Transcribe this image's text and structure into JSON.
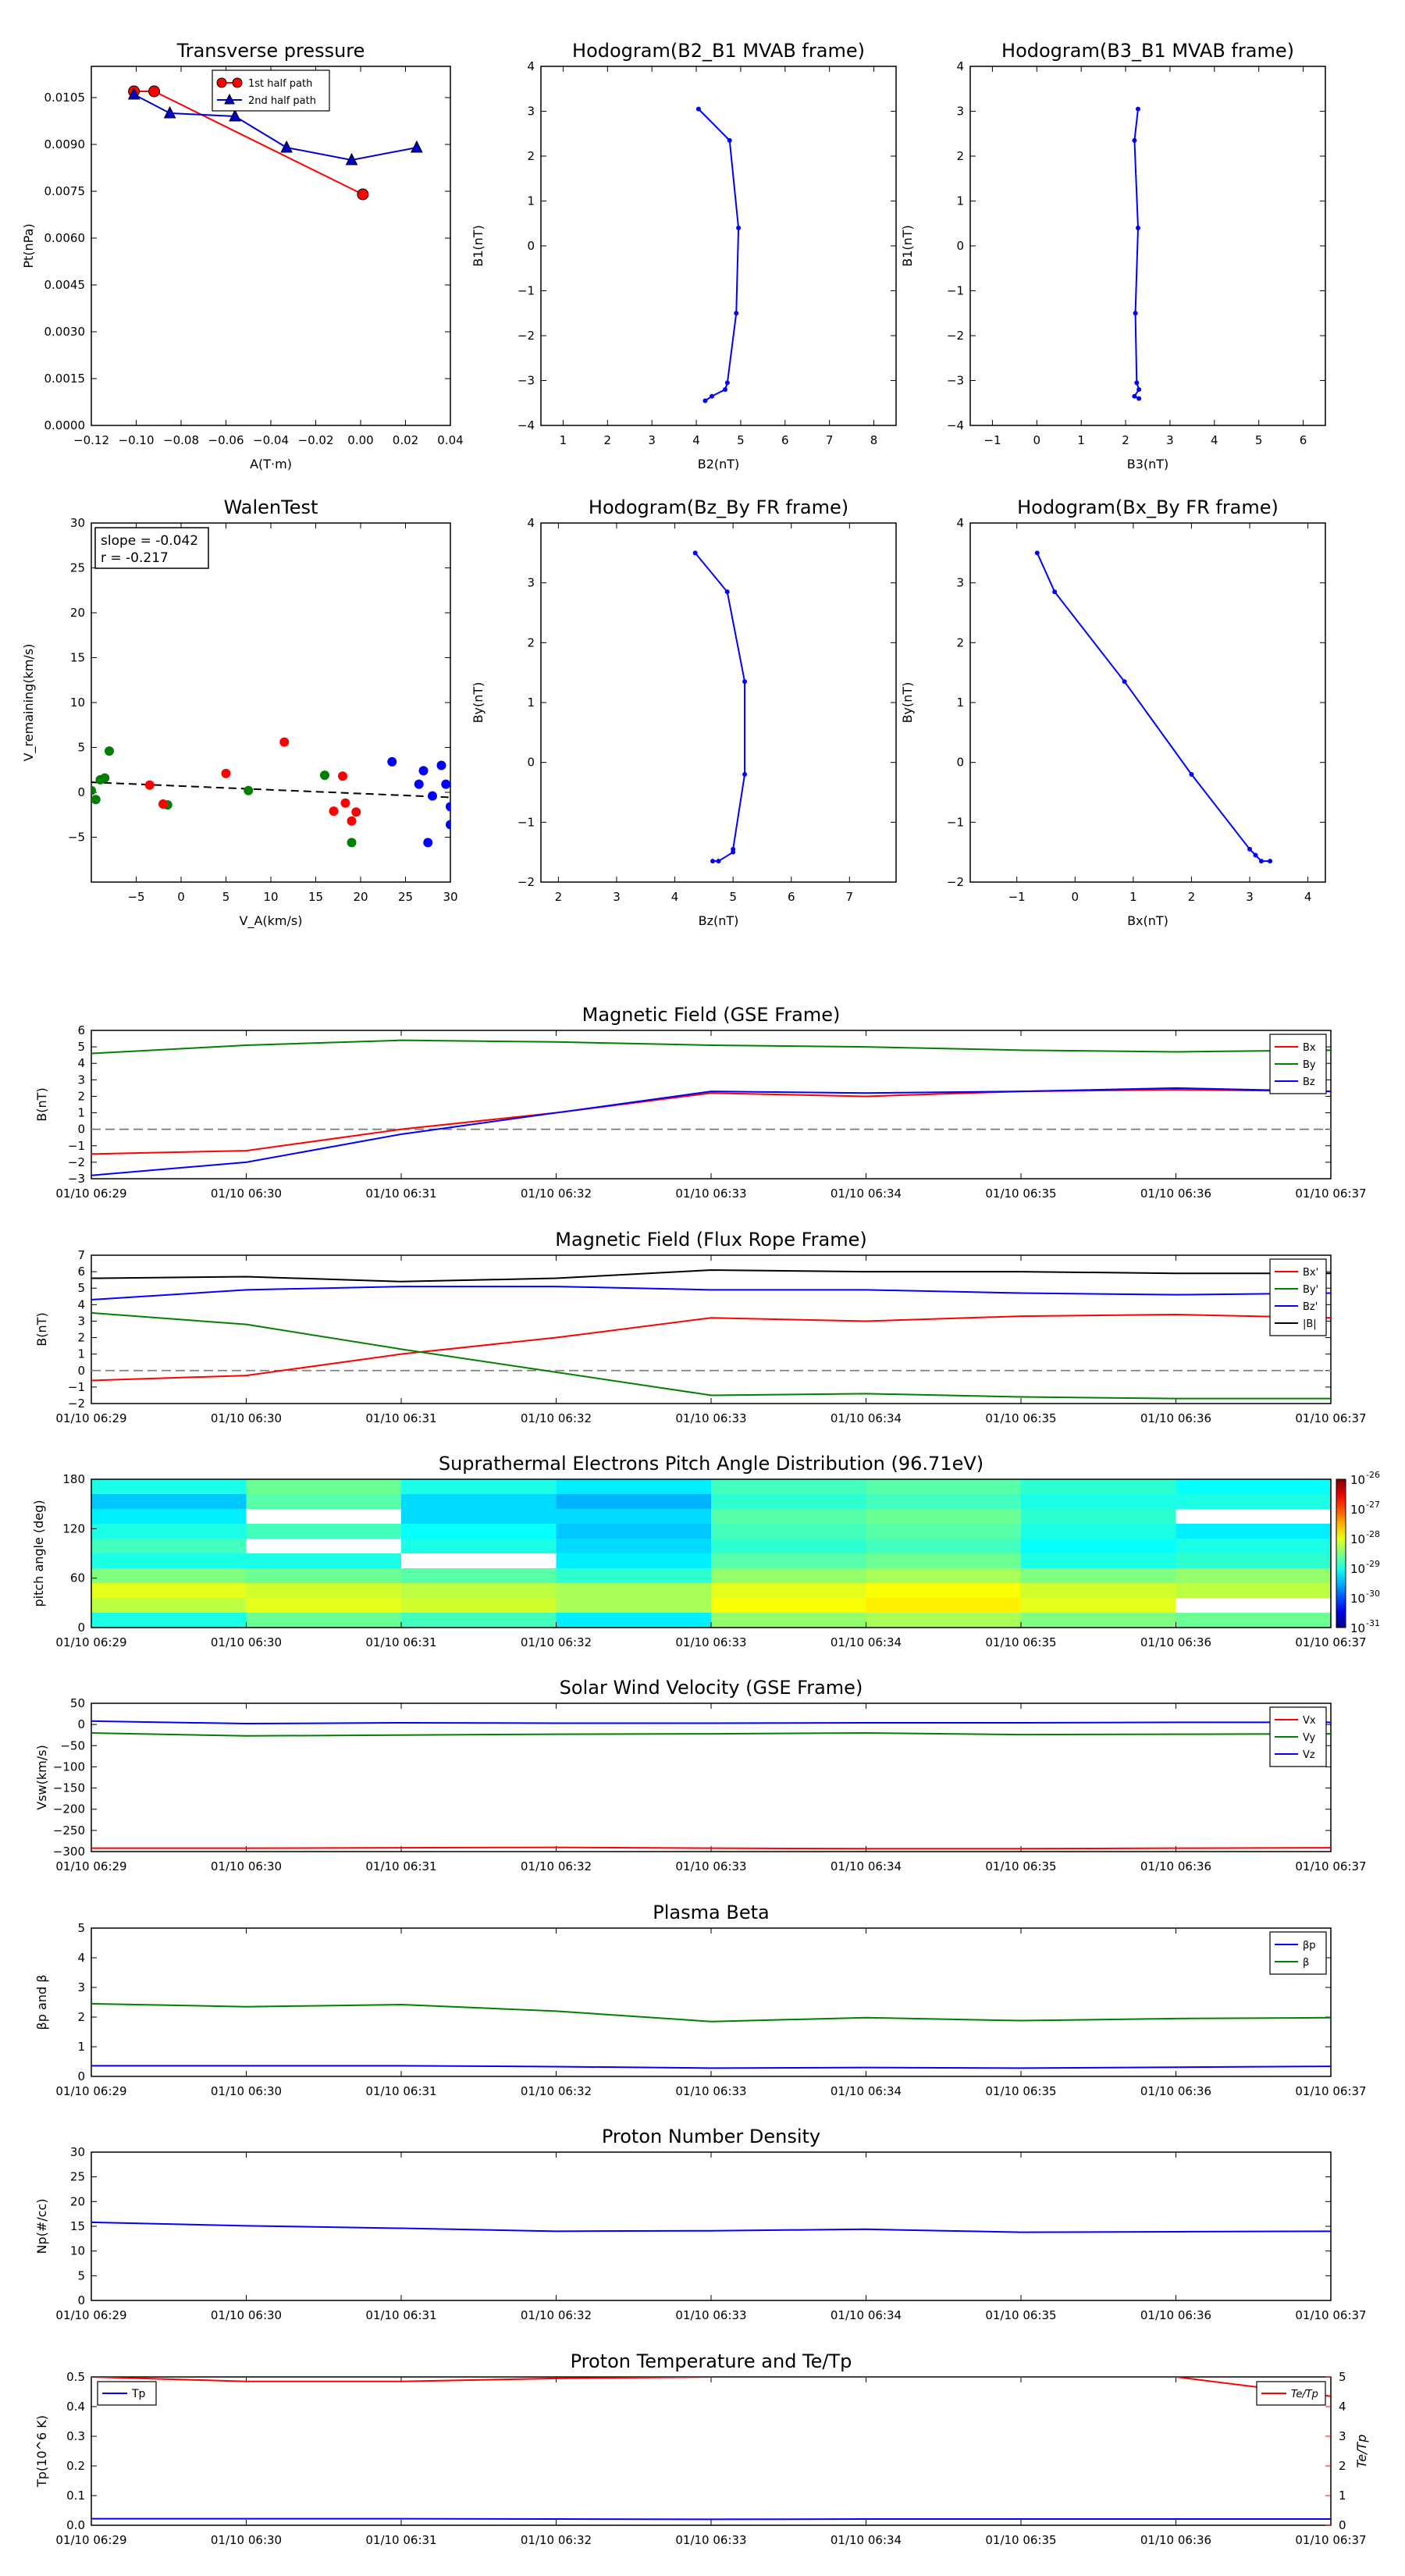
{
  "chart_data": [
    {
      "id": "transverse-pressure",
      "type": "line",
      "title": "Transverse pressure",
      "xlabel": "A(T·m)",
      "ylabel": "Pt(nPa)",
      "xlim": [
        -0.12,
        0.04
      ],
      "ylim": [
        0,
        0.0115
      ],
      "xticks": [
        "−0.12",
        "−0.10",
        "−0.08",
        "−0.06",
        "−0.04",
        "−0.02",
        "0.00",
        "0.02",
        "0.04"
      ],
      "xtick_values": [
        -0.12,
        -0.1,
        -0.08,
        -0.06,
        -0.04,
        -0.02,
        0.0,
        0.02,
        0.04
      ],
      "yticks": [
        "0.0000",
        "0.0015",
        "0.0030",
        "0.0045",
        "0.0060",
        "0.0075",
        "0.0090",
        "0.0105"
      ],
      "ytick_values": [
        0,
        0.0015,
        0.003,
        0.0045,
        0.006,
        0.0075,
        0.009,
        0.0105
      ],
      "legend": "top-center",
      "series": [
        {
          "name": "1st half path",
          "color": "#ff0000",
          "marker": "circle",
          "x": [
            -0.101,
            -0.092,
            0.001
          ],
          "y": [
            0.0107,
            0.0107,
            0.0074
          ]
        },
        {
          "name": "2nd half path",
          "color": "#0000cc",
          "marker": "triangle",
          "x": [
            -0.101,
            -0.085,
            -0.056,
            -0.033,
            -0.004,
            0.025
          ],
          "y": [
            0.0106,
            0.01,
            0.0099,
            0.0089,
            0.0085,
            0.0089
          ]
        }
      ]
    },
    {
      "id": "hodogram-b2-b1",
      "type": "line",
      "title": "Hodogram(B2_B1 MVAB frame)",
      "xlabel": "B2(nT)",
      "ylabel": "B1(nT)",
      "xlim": [
        0.5,
        8.5
      ],
      "ylim": [
        -4,
        4
      ],
      "xticks": [
        "1",
        "2",
        "3",
        "4",
        "5",
        "6",
        "7",
        "8"
      ],
      "xtick_values": [
        1,
        2,
        3,
        4,
        5,
        6,
        7,
        8
      ],
      "yticks": [
        "−4",
        "−3",
        "−2",
        "−1",
        "0",
        "1",
        "2",
        "3",
        "4"
      ],
      "ytick_values": [
        -4,
        -3,
        -2,
        -1,
        0,
        1,
        2,
        3,
        4
      ],
      "series": [
        {
          "color": "#0000ff",
          "x": [
            4.05,
            4.75,
            4.95,
            4.9,
            4.7,
            4.65,
            4.35,
            4.2
          ],
          "y": [
            3.05,
            2.35,
            0.4,
            -1.5,
            -3.05,
            -3.2,
            -3.35,
            -3.45
          ]
        }
      ]
    },
    {
      "id": "hodogram-b3-b1",
      "type": "line",
      "title": "Hodogram(B3_B1 MVAB frame)",
      "xlabel": "B3(nT)",
      "ylabel": "B1(nT)",
      "xlim": [
        -1.5,
        6.5
      ],
      "ylim": [
        -4,
        4
      ],
      "xticks": [
        "−1",
        "0",
        "1",
        "2",
        "3",
        "4",
        "5",
        "6"
      ],
      "xtick_values": [
        -1,
        0,
        1,
        2,
        3,
        4,
        5,
        6
      ],
      "yticks": [
        "−4",
        "−3",
        "−2",
        "−1",
        "0",
        "1",
        "2",
        "3",
        "4"
      ],
      "ytick_values": [
        -4,
        -3,
        -2,
        -1,
        0,
        1,
        2,
        3,
        4
      ],
      "series": [
        {
          "color": "#0000ff",
          "x": [
            2.28,
            2.2,
            2.28,
            2.22,
            2.25,
            2.3,
            2.2,
            2.3
          ],
          "y": [
            3.05,
            2.35,
            0.4,
            -1.5,
            -3.05,
            -3.2,
            -3.35,
            -3.4
          ]
        }
      ]
    },
    {
      "id": "walen-test",
      "type": "scatter",
      "title": "WalenTest",
      "xlabel": "V_A(km/s)",
      "ylabel": "V_remaining(km/s)",
      "xlim": [
        -10,
        30
      ],
      "ylim": [
        -10,
        30
      ],
      "xticks": [
        "−5",
        "0",
        "5",
        "10",
        "15",
        "20",
        "25",
        "30"
      ],
      "xtick_values": [
        -5,
        0,
        5,
        10,
        15,
        20,
        25,
        30
      ],
      "yticks": [
        "−5",
        "0",
        "5",
        "10",
        "15",
        "20",
        "25",
        "30"
      ],
      "ytick_values": [
        -5,
        0,
        5,
        10,
        15,
        20,
        25,
        30
      ],
      "annotation": [
        "slope = -0.042",
        "r = -0.217"
      ],
      "fit_line": {
        "slope": -0.042,
        "intercept": 0.7,
        "style": "dashed"
      },
      "series": [
        {
          "color": "#008000",
          "x": [
            -10.0,
            -9.5,
            -9.0,
            -8.5,
            -8.0,
            -1.5,
            7.5,
            16.0,
            19.0
          ],
          "y": [
            0.2,
            -0.8,
            1.4,
            1.6,
            4.6,
            -1.4,
            0.2,
            1.9,
            -5.6
          ]
        },
        {
          "color": "#ff0000",
          "x": [
            -3.5,
            -2.0,
            5.0,
            11.5,
            17.0,
            18.0,
            18.3,
            19.0,
            19.5
          ],
          "y": [
            0.8,
            -1.3,
            2.1,
            5.6,
            -2.1,
            1.8,
            -1.2,
            -3.2,
            -2.2
          ]
        },
        {
          "color": "#0000ff",
          "x": [
            23.5,
            26.5,
            27.0,
            27.5,
            28.0,
            29.0,
            29.5,
            30.0,
            30.0
          ],
          "y": [
            3.4,
            0.9,
            2.4,
            -5.6,
            -0.4,
            3.0,
            0.9,
            -1.6,
            -3.6
          ]
        }
      ]
    },
    {
      "id": "hodogram-bz-by",
      "type": "line",
      "title": "Hodogram(Bz_By FR frame)",
      "xlabel": "Bz(nT)",
      "ylabel": "By(nT)",
      "xlim": [
        1.7,
        7.8
      ],
      "ylim": [
        -2,
        4
      ],
      "xticks": [
        "2",
        "3",
        "4",
        "5",
        "6",
        "7"
      ],
      "xtick_values": [
        2,
        3,
        4,
        5,
        6,
        7
      ],
      "yticks": [
        "−2",
        "−1",
        "0",
        "1",
        "2",
        "3",
        "4"
      ],
      "ytick_values": [
        -2,
        -1,
        0,
        1,
        2,
        3,
        4
      ],
      "series": [
        {
          "color": "#0000ff",
          "x": [
            4.35,
            4.9,
            5.2,
            5.2,
            5.0,
            5.0,
            4.75,
            4.65
          ],
          "y": [
            3.5,
            2.85,
            1.35,
            -0.2,
            -1.45,
            -1.5,
            -1.65,
            -1.65
          ]
        }
      ]
    },
    {
      "id": "hodogram-bx-by",
      "type": "line",
      "title": "Hodogram(Bx_By FR frame)",
      "xlabel": "Bx(nT)",
      "ylabel": "By(nT)",
      "xlim": [
        -1.8,
        4.3
      ],
      "ylim": [
        -2,
        4
      ],
      "xticks": [
        "−1",
        "0",
        "1",
        "2",
        "3",
        "4"
      ],
      "xtick_values": [
        -1,
        0,
        1,
        2,
        3,
        4
      ],
      "yticks": [
        "−2",
        "−1",
        "0",
        "1",
        "2",
        "3",
        "4"
      ],
      "ytick_values": [
        -2,
        -1,
        0,
        1,
        2,
        3,
        4
      ],
      "series": [
        {
          "color": "#0000ff",
          "x": [
            -0.65,
            -0.35,
            0.85,
            2.0,
            3.0,
            3.1,
            3.2,
            3.35
          ],
          "y": [
            3.5,
            2.85,
            1.35,
            -0.2,
            -1.45,
            -1.55,
            -1.65,
            -1.65
          ]
        }
      ]
    },
    {
      "id": "mag-gse",
      "type": "line",
      "title": "Magnetic Field (GSE Frame)",
      "ylabel": "B(nT)",
      "categories": [
        "01/10 06:29",
        "01/10 06:30",
        "01/10 06:31",
        "01/10 06:32",
        "01/10 06:33",
        "01/10 06:34",
        "01/10 06:35",
        "01/10 06:36",
        "01/10 06:37"
      ],
      "ylim": [
        -3,
        6
      ],
      "yticks": [
        "−3",
        "−2",
        "−1",
        "0",
        "1",
        "2",
        "3",
        "4",
        "5",
        "6"
      ],
      "ytick_values": [
        -3,
        -2,
        -1,
        0,
        1,
        2,
        3,
        4,
        5,
        6
      ],
      "zero_line": true,
      "legend": "top-right",
      "series": [
        {
          "name": "Bx",
          "color": "#ff0000",
          "values": [
            -1.5,
            -1.3,
            0.0,
            1.0,
            2.2,
            2.0,
            2.3,
            2.4,
            2.3
          ]
        },
        {
          "name": "By",
          "color": "#008000",
          "values": [
            4.6,
            5.1,
            5.4,
            5.3,
            5.1,
            5.0,
            4.8,
            4.7,
            4.8
          ]
        },
        {
          "name": "Bz",
          "color": "#0000ff",
          "values": [
            -2.8,
            -2.0,
            -0.3,
            1.0,
            2.3,
            2.2,
            2.3,
            2.5,
            2.3
          ]
        }
      ]
    },
    {
      "id": "mag-fr",
      "type": "line",
      "title": "Magnetic Field (Flux Rope Frame)",
      "ylabel": "B(nT)",
      "categories": [
        "01/10 06:29",
        "01/10 06:30",
        "01/10 06:31",
        "01/10 06:32",
        "01/10 06:33",
        "01/10 06:34",
        "01/10 06:35",
        "01/10 06:36",
        "01/10 06:37"
      ],
      "ylim": [
        -2,
        7
      ],
      "yticks": [
        "−2",
        "−1",
        "0",
        "1",
        "2",
        "3",
        "4",
        "5",
        "6",
        "7"
      ],
      "ytick_values": [
        -2,
        -1,
        0,
        1,
        2,
        3,
        4,
        5,
        6,
        7
      ],
      "zero_line": true,
      "legend": "top-right",
      "series": [
        {
          "name": "Bx'",
          "color": "#ff0000",
          "values": [
            -0.6,
            -0.3,
            1.0,
            2.0,
            3.2,
            3.0,
            3.3,
            3.4,
            3.2
          ]
        },
        {
          "name": "By'",
          "color": "#008000",
          "values": [
            3.5,
            2.8,
            1.3,
            -0.1,
            -1.5,
            -1.4,
            -1.6,
            -1.7,
            -1.7
          ]
        },
        {
          "name": "Bz'",
          "color": "#0000ff",
          "values": [
            4.3,
            4.9,
            5.1,
            5.1,
            4.9,
            4.9,
            4.7,
            4.6,
            4.7
          ]
        },
        {
          "name": "|B|",
          "color": "#000000",
          "values": [
            5.6,
            5.7,
            5.4,
            5.6,
            6.1,
            6.0,
            6.0,
            5.9,
            5.9
          ]
        }
      ]
    },
    {
      "id": "pad",
      "type": "heatmap",
      "title": "Suprathermal Electrons Pitch Angle Distribution (96.71eV)",
      "ylabel": "pitch angle (deg)",
      "categories": [
        "01/10 06:29",
        "01/10 06:30",
        "01/10 06:31",
        "01/10 06:32",
        "01/10 06:33",
        "01/10 06:34",
        "01/10 06:35",
        "01/10 06:36",
        "01/10 06:37"
      ],
      "ylim": [
        0,
        180
      ],
      "yticks": [
        "0",
        "60",
        "120",
        "180"
      ],
      "ytick_values": [
        0,
        60,
        120,
        180
      ],
      "colorbar_ticks": [
        "10",
        "10",
        "10",
        "10",
        "10",
        "10"
      ],
      "colorbar_exponents": [
        "-26",
        "-27",
        "-28",
        "-29",
        "-30",
        "-31"
      ],
      "pitch_bins": [
        0,
        18,
        36,
        54,
        72,
        90,
        108,
        126,
        144,
        162,
        180
      ],
      "time_bins": [
        0,
        1,
        2,
        3,
        4,
        5,
        6,
        7,
        8
      ],
      "log_values": [
        [
          -29.0,
          -28.2,
          -28.0,
          -28.5,
          -29.0,
          -28.8,
          -29.0,
          -29.2,
          -29.4,
          -29.0
        ],
        [
          -28.6,
          -28.0,
          -28.1,
          -28.6,
          -29.0,
          null,
          -28.8,
          null,
          -28.7,
          -28.6
        ],
        [
          -28.8,
          -28.1,
          -28.2,
          -28.7,
          null,
          -29.0,
          -29.1,
          -29.3,
          -29.3,
          -29.0
        ],
        [
          -29.2,
          -28.3,
          -28.3,
          -28.9,
          -29.2,
          -29.3,
          -29.4,
          -29.3,
          -29.5,
          -29.2
        ],
        [
          -28.4,
          -27.9,
          -28.0,
          -28.4,
          -28.7,
          -28.9,
          -28.8,
          -28.7,
          -28.9,
          -28.8
        ],
        [
          -28.3,
          -27.8,
          -27.9,
          -28.3,
          -28.6,
          -28.8,
          -28.7,
          -28.6,
          -28.8,
          -28.7
        ],
        [
          -28.5,
          -28.0,
          -28.1,
          -28.5,
          -29.0,
          -29.1,
          -29.0,
          -28.9,
          -29.0,
          -28.9
        ],
        [
          -28.6,
          null,
          -28.2,
          -28.4,
          -28.9,
          -29.0,
          -29.2,
          null,
          -29.0,
          -29.1
        ]
      ]
    },
    {
      "id": "vsw",
      "type": "line",
      "title": "Solar Wind Velocity (GSE Frame)",
      "ylabel": "Vsw(km/s)",
      "categories": [
        "01/10 06:29",
        "01/10 06:30",
        "01/10 06:31",
        "01/10 06:32",
        "01/10 06:33",
        "01/10 06:34",
        "01/10 06:35",
        "01/10 06:36",
        "01/10 06:37"
      ],
      "ylim": [
        -300,
        50
      ],
      "yticks": [
        "−300",
        "−250",
        "−200",
        "−150",
        "−100",
        "−50",
        "0",
        "50"
      ],
      "ytick_values": [
        -300,
        -250,
        -200,
        -150,
        -100,
        -50,
        0,
        50
      ],
      "legend": "top-right",
      "series": [
        {
          "name": "Vx",
          "color": "#ff0000",
          "values": [
            -292,
            -292,
            -291,
            -290,
            -292,
            -293,
            -293,
            -292,
            -291
          ]
        },
        {
          "name": "Vy",
          "color": "#008000",
          "values": [
            -20,
            -27,
            -25,
            -23,
            -22,
            -20,
            -24,
            -23,
            -22
          ]
        },
        {
          "name": "Vz",
          "color": "#0000ff",
          "values": [
            8,
            2,
            4,
            3,
            3,
            4,
            4,
            5,
            5
          ]
        }
      ]
    },
    {
      "id": "beta",
      "type": "line",
      "title": "Plasma Beta",
      "ylabel": "βp and β",
      "categories": [
        "01/10 06:29",
        "01/10 06:30",
        "01/10 06:31",
        "01/10 06:32",
        "01/10 06:33",
        "01/10 06:34",
        "01/10 06:35",
        "01/10 06:36",
        "01/10 06:37"
      ],
      "ylim": [
        0,
        5
      ],
      "yticks": [
        "0",
        "1",
        "2",
        "3",
        "4",
        "5"
      ],
      "ytick_values": [
        0,
        1,
        2,
        3,
        4,
        5
      ],
      "legend": "top-right",
      "series": [
        {
          "name": "βp",
          "color": "#0000ff",
          "values": [
            0.36,
            0.36,
            0.36,
            0.33,
            0.28,
            0.3,
            0.28,
            0.31,
            0.34
          ]
        },
        {
          "name": "β",
          "color": "#008000",
          "values": [
            2.45,
            2.35,
            2.42,
            2.2,
            1.85,
            1.98,
            1.88,
            1.95,
            1.98
          ]
        }
      ]
    },
    {
      "id": "np",
      "type": "line",
      "title": "Proton Number Density",
      "ylabel": "Np(#/cc)",
      "categories": [
        "01/10 06:29",
        "01/10 06:30",
        "01/10 06:31",
        "01/10 06:32",
        "01/10 06:33",
        "01/10 06:34",
        "01/10 06:35",
        "01/10 06:36",
        "01/10 06:37"
      ],
      "ylim": [
        0,
        30
      ],
      "yticks": [
        "0",
        "5",
        "10",
        "15",
        "20",
        "25",
        "30"
      ],
      "ytick_values": [
        0,
        5,
        10,
        15,
        20,
        25,
        30
      ],
      "series": [
        {
          "color": "#0000ff",
          "values": [
            15.8,
            15.1,
            14.6,
            14.0,
            14.1,
            14.4,
            13.8,
            13.9,
            14.0
          ]
        }
      ]
    },
    {
      "id": "tp",
      "type": "line",
      "title": "Proton Temperature and Te/Tp",
      "ylabel": "Tp(10^6 K)",
      "ylabel_right": "Te/Tp",
      "categories": [
        "01/10 06:29",
        "01/10 06:30",
        "01/10 06:31",
        "01/10 06:32",
        "01/10 06:33",
        "01/10 06:34",
        "01/10 06:35",
        "01/10 06:36",
        "01/10 06:37"
      ],
      "ylim": [
        0,
        0.5
      ],
      "yticks": [
        "0.0",
        "0.1",
        "0.2",
        "0.3",
        "0.4",
        "0.5"
      ],
      "ytick_values": [
        0,
        0.1,
        0.2,
        0.3,
        0.4,
        0.5
      ],
      "ylim_right": [
        0,
        5
      ],
      "yticks_right": [
        "0",
        "1",
        "2",
        "3",
        "4",
        "5"
      ],
      "ytick_values_right": [
        0,
        1,
        2,
        3,
        4,
        5
      ],
      "series": [
        {
          "name": "Tp",
          "color": "#0000ff",
          "axis": "left",
          "values": [
            0.022,
            0.022,
            0.022,
            0.021,
            0.02,
            0.021,
            0.021,
            0.021,
            0.021
          ]
        },
        {
          "name": "Te/Tp",
          "color": "#ff0000",
          "axis": "right",
          "values": [
            5.0,
            4.85,
            4.85,
            4.95,
            5.0,
            5.0,
            5.0,
            5.0,
            4.35
          ]
        }
      ]
    }
  ]
}
